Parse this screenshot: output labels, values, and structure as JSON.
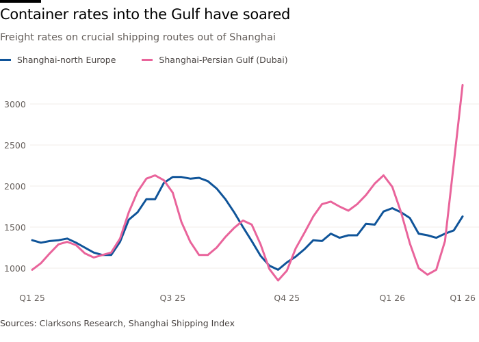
{
  "header": {
    "title": "Container rates into the Gulf have soared",
    "subtitle": "Freight rates on crucial shipping routes out of Shanghai"
  },
  "footer": {
    "source": "Sources: Clarksons Research, Shanghai Shipping Index"
  },
  "colors": {
    "north_europe": "#0f5499",
    "persian_gulf": "#e9649b",
    "grid": "#f2ece8",
    "top_bar": "#000000"
  },
  "chart_data": {
    "type": "line",
    "title": "Container rates into the Gulf have soared",
    "subtitle": "Freight rates on crucial shipping routes out of Shanghai",
    "xlabel": "",
    "ylabel": "",
    "ylim": [
      800,
      3300
    ],
    "y_ticks": [
      1000,
      1500,
      2000,
      2500,
      3000
    ],
    "x_tick_labels": [
      {
        "index": 0,
        "label": "Q1 25"
      },
      {
        "index": 16,
        "label": "Q3 25"
      },
      {
        "index": 29,
        "label": "Q4 25"
      },
      {
        "index": 41,
        "label": "Q1 26"
      },
      {
        "index": 49,
        "label": "Q1 26"
      }
    ],
    "grid": true,
    "legend_position": "top-left",
    "x": [
      0,
      1,
      2,
      3,
      4,
      5,
      6,
      7,
      8,
      9,
      10,
      11,
      12,
      13,
      14,
      15,
      16,
      17,
      18,
      19,
      20,
      21,
      22,
      23,
      24,
      25,
      26,
      27,
      28,
      29,
      30,
      31,
      32,
      33,
      34,
      35,
      36,
      37,
      38,
      39,
      40,
      41,
      42,
      43,
      44,
      45,
      46,
      47,
      48,
      49
    ],
    "series": [
      {
        "name": "Shanghai-north Europe",
        "color": "#0f5499",
        "values": [
          1340,
          1310,
          1330,
          1340,
          1360,
          1310,
          1250,
          1190,
          1160,
          1160,
          1320,
          1590,
          1680,
          1840,
          1840,
          2040,
          2110,
          2110,
          2090,
          2100,
          2060,
          1970,
          1840,
          1680,
          1500,
          1330,
          1150,
          1030,
          980,
          1070,
          1140,
          1230,
          1340,
          1330,
          1420,
          1370,
          1400,
          1400,
          1540,
          1530,
          1690,
          1730,
          1680,
          1610,
          1420,
          1400,
          1370,
          1420,
          1460,
          1630
        ]
      },
      {
        "name": "Shanghai-Persian Gulf (Dubai)",
        "color": "#e9649b",
        "values": [
          980,
          1060,
          1180,
          1290,
          1320,
          1280,
          1180,
          1130,
          1160,
          1190,
          1360,
          1680,
          1930,
          2090,
          2130,
          2070,
          1920,
          1560,
          1320,
          1160,
          1160,
          1250,
          1380,
          1490,
          1580,
          1530,
          1290,
          990,
          850,
          970,
          1240,
          1430,
          1630,
          1780,
          1810,
          1750,
          1700,
          1780,
          1890,
          2030,
          2130,
          1990,
          1680,
          1300,
          1000,
          920,
          980,
          1330,
          2280,
          3230
        ]
      }
    ]
  }
}
